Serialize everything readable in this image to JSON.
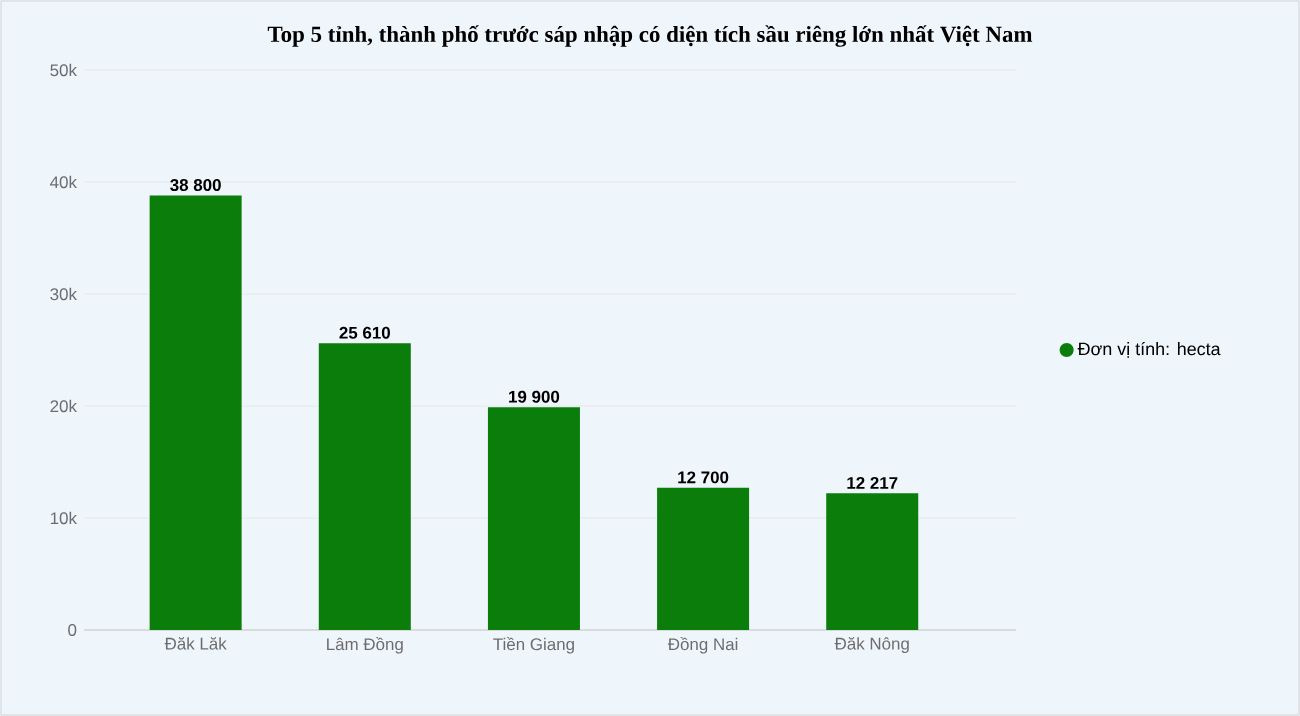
{
  "chart_data": {
    "type": "bar",
    "title": "Top 5 tỉnh, thành phố trước sáp nhập có diện tích sầu riêng lớn nhất Việt Nam",
    "categories": [
      "Đăk Lăk",
      "Lâm Đồng",
      "Tiền Giang",
      "Đồng Nai",
      "Đăk Nông"
    ],
    "series": [
      {
        "name": "Đơn vị tính: hecta",
        "color": "#0a7d0a",
        "values": [
          38800,
          25610,
          19900,
          12700,
          12217
        ],
        "value_labels": [
          "38 800",
          "25 610",
          "19 900",
          "12 700",
          "12 217"
        ]
      }
    ],
    "ylim": [
      0,
      50000
    ],
    "yticks": [
      {
        "value": 0,
        "label": "0"
      },
      {
        "value": 10000,
        "label": "10k"
      },
      {
        "value": 20000,
        "label": "20k"
      },
      {
        "value": 30000,
        "label": "30k"
      },
      {
        "value": 40000,
        "label": "40k"
      },
      {
        "value": 50000,
        "label": "50k"
      }
    ],
    "grid": "y",
    "legend": "right"
  }
}
